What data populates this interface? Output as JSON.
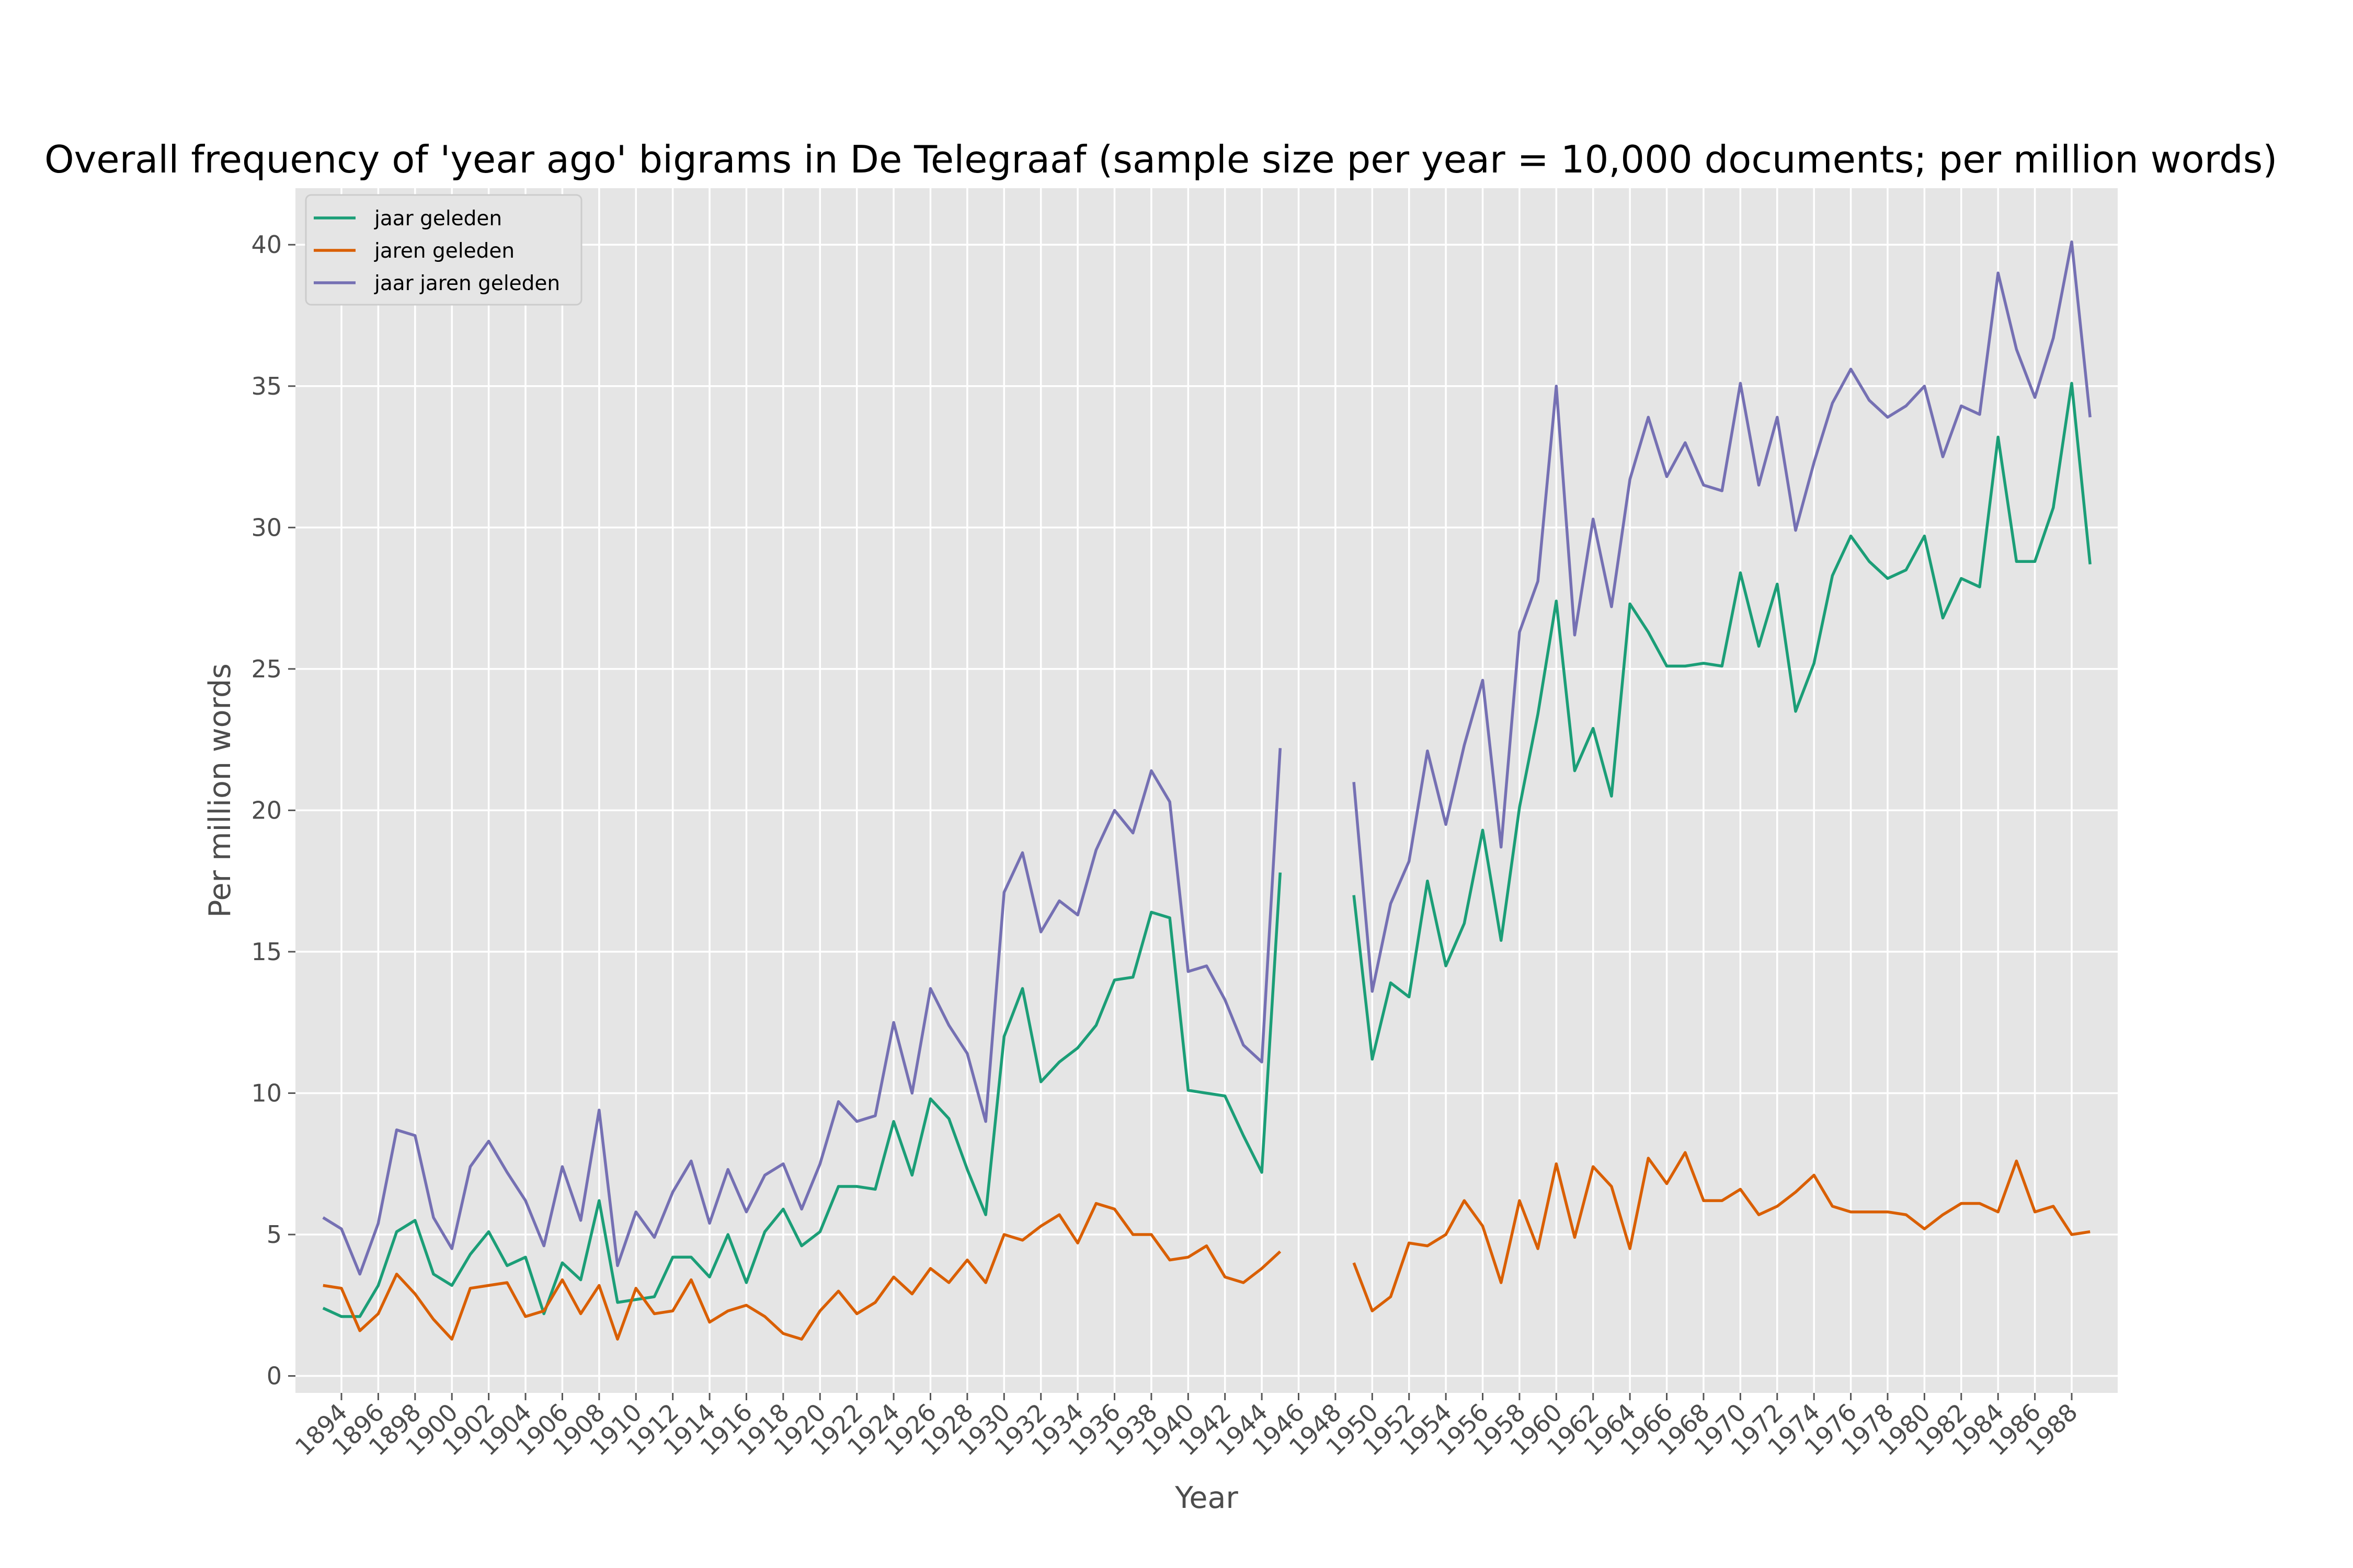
{
  "chart_data": {
    "type": "line",
    "title": "Overall frequency of 'year ago' bigrams in De Telegraaf (sample size per year = 10,000 documents; per million words)",
    "xlabel": "Year",
    "ylabel": "Per million words",
    "xlim": [
      1891.5,
      1990.5
    ],
    "ylim": [
      -0.6,
      42.0
    ],
    "xticks": [
      1894,
      1896,
      1898,
      1900,
      1902,
      1904,
      1906,
      1908,
      1910,
      1912,
      1914,
      1916,
      1918,
      1920,
      1922,
      1924,
      1926,
      1928,
      1930,
      1932,
      1934,
      1936,
      1938,
      1940,
      1942,
      1944,
      1946,
      1948,
      1950,
      1952,
      1954,
      1956,
      1958,
      1960,
      1962,
      1964,
      1966,
      1968,
      1970,
      1972,
      1974,
      1976,
      1978,
      1980,
      1982,
      1984,
      1986,
      1988
    ],
    "yticks": [
      0,
      5,
      10,
      15,
      20,
      25,
      30,
      35,
      40
    ],
    "grid": true,
    "legend_position": "upper-left",
    "x": [
      1893,
      1894,
      1895,
      1896,
      1897,
      1898,
      1899,
      1900,
      1901,
      1902,
      1903,
      1904,
      1905,
      1906,
      1907,
      1908,
      1909,
      1910,
      1911,
      1912,
      1913,
      1914,
      1915,
      1916,
      1917,
      1918,
      1919,
      1920,
      1921,
      1922,
      1923,
      1924,
      1925,
      1926,
      1927,
      1928,
      1929,
      1930,
      1931,
      1932,
      1933,
      1934,
      1935,
      1936,
      1937,
      1938,
      1939,
      1940,
      1941,
      1942,
      1943,
      1944,
      1945,
      1946,
      1947,
      1948,
      1949,
      1950,
      1951,
      1952,
      1953,
      1954,
      1955,
      1956,
      1957,
      1958,
      1959,
      1960,
      1961,
      1962,
      1963,
      1964,
      1965,
      1966,
      1967,
      1968,
      1969,
      1970,
      1971,
      1972,
      1973,
      1974,
      1975,
      1976,
      1977,
      1978,
      1979,
      1980,
      1981,
      1982,
      1983,
      1984,
      1985,
      1986,
      1987,
      1988,
      1989
    ],
    "series": [
      {
        "name": "jaar geleden",
        "color": "#1b9e77",
        "values": [
          2.4,
          2.1,
          2.1,
          3.2,
          5.1,
          5.5,
          3.6,
          3.2,
          4.3,
          5.1,
          3.9,
          4.2,
          2.2,
          4.0,
          3.4,
          6.2,
          2.6,
          2.7,
          2.8,
          4.2,
          4.2,
          3.5,
          5.0,
          3.3,
          5.1,
          5.9,
          4.6,
          5.1,
          6.7,
          6.7,
          6.6,
          9.0,
          7.1,
          9.8,
          9.1,
          7.3,
          5.7,
          12.0,
          13.7,
          10.4,
          11.1,
          11.6,
          12.4,
          14.0,
          14.1,
          16.4,
          16.2,
          10.1,
          10.0,
          9.9,
          8.5,
          7.2,
          17.8,
          null,
          null,
          null,
          17.0,
          11.2,
          13.9,
          13.4,
          17.5,
          14.5,
          16.0,
          19.3,
          15.4,
          20.1,
          23.4,
          27.4,
          21.4,
          22.9,
          20.5,
          27.3,
          26.3,
          25.1,
          25.1,
          25.2,
          25.1,
          28.4,
          25.8,
          28.0,
          23.5,
          25.2,
          28.3,
          29.7,
          28.8,
          28.2,
          28.5,
          29.7,
          26.8,
          28.2,
          27.9,
          33.2,
          28.8,
          28.8,
          30.7,
          35.1,
          28.7
        ]
      },
      {
        "name": "jaren geleden",
        "color": "#d95f02",
        "values": [
          3.2,
          3.1,
          1.6,
          2.2,
          3.6,
          2.9,
          2.0,
          1.3,
          3.1,
          3.2,
          3.3,
          2.1,
          2.3,
          3.4,
          2.2,
          3.2,
          1.3,
          3.1,
          2.2,
          2.3,
          3.4,
          1.9,
          2.3,
          2.5,
          2.1,
          1.5,
          1.3,
          2.3,
          3.0,
          2.2,
          2.6,
          3.5,
          2.9,
          3.8,
          3.3,
          4.1,
          3.3,
          5.0,
          4.8,
          5.3,
          5.7,
          4.7,
          6.1,
          5.9,
          5.0,
          5.0,
          4.1,
          4.2,
          4.6,
          3.5,
          3.3,
          3.8,
          4.4,
          null,
          null,
          null,
          4.0,
          2.3,
          2.8,
          4.7,
          4.6,
          5.0,
          6.2,
          5.3,
          3.3,
          6.2,
          4.5,
          7.5,
          4.9,
          7.4,
          6.7,
          4.5,
          7.7,
          6.8,
          7.9,
          6.2,
          6.2,
          6.6,
          5.7,
          6.0,
          6.5,
          7.1,
          6.0,
          5.8,
          5.8,
          5.8,
          5.7,
          5.2,
          5.7,
          6.1,
          6.1,
          5.8,
          7.6,
          5.8,
          6.0,
          5.0,
          5.1
        ]
      },
      {
        "name": "jaar jaren geleden",
        "color": "#7570b3",
        "values": [
          5.6,
          5.2,
          3.6,
          5.4,
          8.7,
          8.5,
          5.6,
          4.5,
          7.4,
          8.3,
          7.2,
          6.2,
          4.6,
          7.4,
          5.5,
          9.4,
          3.9,
          5.8,
          4.9,
          6.5,
          7.6,
          5.4,
          7.3,
          5.8,
          7.1,
          7.5,
          5.9,
          7.5,
          9.7,
          9.0,
          9.2,
          12.5,
          10.0,
          13.7,
          12.4,
          11.4,
          9.0,
          17.1,
          18.5,
          15.7,
          16.8,
          16.3,
          18.6,
          20.0,
          19.2,
          21.4,
          20.3,
          14.3,
          14.5,
          13.3,
          11.7,
          11.1,
          22.2,
          null,
          null,
          null,
          21.0,
          13.6,
          16.7,
          18.2,
          22.1,
          19.5,
          22.3,
          24.6,
          18.7,
          26.3,
          28.1,
          35.0,
          26.2,
          30.3,
          27.2,
          31.7,
          33.9,
          31.8,
          33.0,
          31.5,
          31.3,
          35.1,
          31.5,
          33.9,
          29.9,
          32.3,
          34.4,
          35.6,
          34.5,
          33.9,
          34.3,
          35.0,
          32.5,
          34.3,
          34.0,
          39.0,
          36.3,
          34.6,
          36.7,
          40.1,
          33.9
        ]
      }
    ]
  }
}
